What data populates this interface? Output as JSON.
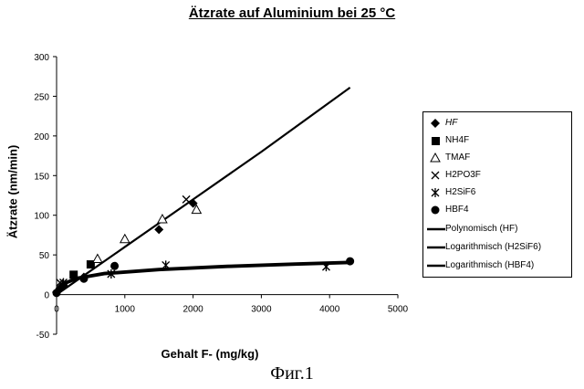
{
  "title": "Ätzrate auf Aluminium bei 25 °C",
  "caption": "Фиг.1",
  "chart_data": {
    "type": "scatter",
    "title": "Ätzrate auf Aluminium bei 25 °C",
    "xlabel": "Gehalt F- (mg/kg)",
    "ylabel": "Ätzrate (nm/min)",
    "xlim": [
      0,
      5000
    ],
    "ylim": [
      -50,
      300
    ],
    "x_ticks": [
      0,
      1000,
      2000,
      3000,
      4000,
      5000
    ],
    "y_ticks": [
      -50,
      0,
      50,
      100,
      150,
      200,
      250,
      300
    ],
    "grid": false,
    "legend_position": "right",
    "series": [
      {
        "name": "HF",
        "marker": "diamond",
        "x": [
          0,
          50,
          100,
          400,
          1500,
          2000
        ],
        "y": [
          3,
          8,
          12,
          22,
          82,
          115
        ]
      },
      {
        "name": "NH4F",
        "marker": "square",
        "x": [
          250,
          500
        ],
        "y": [
          25,
          38
        ]
      },
      {
        "name": "TMAF",
        "marker": "triangle",
        "x": [
          600,
          1000,
          1550,
          2050
        ],
        "y": [
          45,
          70,
          95,
          107
        ]
      },
      {
        "name": "H2PO3F",
        "marker": "x",
        "x": [
          50,
          1900
        ],
        "y": [
          15,
          120
        ]
      },
      {
        "name": "H2SiF6",
        "marker": "asterisk",
        "x": [
          100,
          800,
          1600,
          3950
        ],
        "y": [
          15,
          26,
          37,
          35
        ]
      },
      {
        "name": "HBF4",
        "marker": "circle",
        "x": [
          0,
          400,
          850,
          4300
        ],
        "y": [
          2,
          20,
          36,
          42
        ]
      }
    ],
    "trendlines": [
      {
        "name": "Polynomisch (HF)",
        "type": "polynomial",
        "x": [
          0,
          1000,
          2000,
          3000,
          4300
        ],
        "y": [
          0,
          60,
          120,
          180,
          261
        ]
      },
      {
        "name": "Logarithmisch (H2SiF6)",
        "type": "logarithmic",
        "x": [
          20,
          100,
          300,
          700,
          1500,
          2500,
          3500,
          4300
        ],
        "y": [
          5,
          14,
          21,
          27,
          32,
          36,
          39,
          41
        ]
      },
      {
        "name": "Logarithmisch (HBF4)",
        "type": "logarithmic",
        "x": [
          20,
          100,
          300,
          700,
          1500,
          2500,
          3500,
          4300
        ],
        "y": [
          4,
          13,
          20,
          26,
          31,
          35,
          38,
          40
        ]
      }
    ]
  }
}
